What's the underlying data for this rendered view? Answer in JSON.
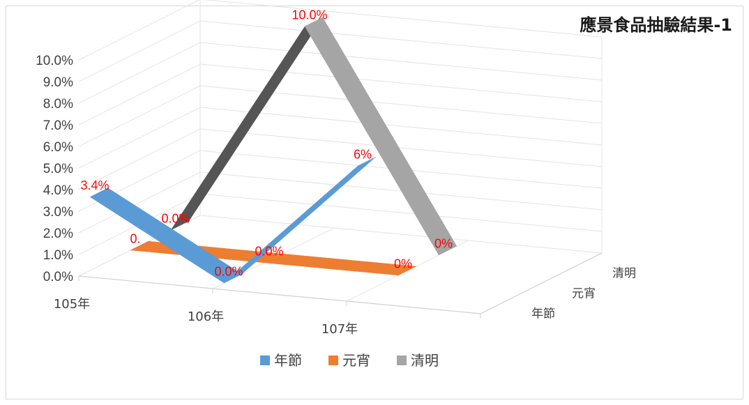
{
  "chart_data": {
    "type": "line",
    "style": "3d-ribbon",
    "title": "應景食品抽驗結果-1",
    "categories": [
      "105年",
      "106年",
      "107年"
    ],
    "series": [
      {
        "name": "年節",
        "values": [
          3.4,
          0.0,
          6
        ],
        "labels": [
          "3.4%",
          "0.0%",
          "6%"
        ],
        "color": "#5b9bd5"
      },
      {
        "name": "元宵",
        "values": [
          0.0,
          0.0,
          0
        ],
        "labels": [
          "0.",
          "0.0%",
          "0%"
        ],
        "color": "#ed7d31"
      },
      {
        "name": "清明",
        "values": [
          0.0,
          10.0,
          0
        ],
        "labels": [
          "0.0%",
          "10.0%",
          "0%"
        ],
        "color": "#a5a5a5"
      }
    ],
    "yticks": [
      "0.0%",
      "1.0%",
      "2.0%",
      "3.0%",
      "4.0%",
      "5.0%",
      "6.0%",
      "7.0%",
      "8.0%",
      "9.0%",
      "10.0%"
    ],
    "ylim": [
      0,
      10
    ],
    "depth_labels": [
      "年節",
      "元宵",
      "清明"
    ],
    "legend_position": "bottom",
    "data_label_color": "#ff0000",
    "grid": true
  }
}
